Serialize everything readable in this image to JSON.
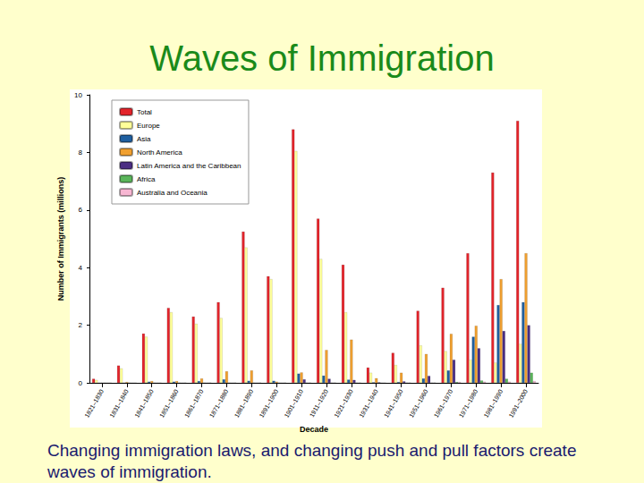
{
  "chart_data": {
    "type": "bar",
    "title": "Waves of Immigration",
    "annotations": [
      "Changing immigration laws, and changing push and pull factors create waves of immigration."
    ],
    "x_label": "Decade",
    "y_label": "Number of Immigrants (millions)",
    "categories": [
      "1821–1830",
      "1831–1840",
      "1841–1850",
      "1851–1860",
      "1861–1870",
      "1871–1880",
      "1881–1890",
      "1891–1900",
      "1901–1910",
      "1911–1920",
      "1921–1930",
      "1931–1940",
      "1941–1950",
      "1951–1960",
      "1961–1970",
      "1971–1980",
      "1981–1990",
      "1991–2000"
    ],
    "series": [
      {
        "name": "Total",
        "color": "#e3242b",
        "values": [
          0.14,
          0.6,
          1.71,
          2.6,
          2.3,
          2.8,
          5.25,
          3.7,
          8.8,
          5.7,
          4.1,
          0.53,
          1.04,
          2.5,
          3.3,
          4.5,
          7.3,
          9.1
        ]
      },
      {
        "name": "Europe",
        "color": "#ffff99",
        "values": [
          0.1,
          0.5,
          1.6,
          2.45,
          2.05,
          2.25,
          4.7,
          3.6,
          8.05,
          4.3,
          2.45,
          0.35,
          0.62,
          1.3,
          1.1,
          0.8,
          0.7,
          1.35
        ]
      },
      {
        "name": "Asia",
        "color": "#1f5fa0",
        "values": [
          0,
          0,
          0.04,
          0.04,
          0.06,
          0.12,
          0.07,
          0.07,
          0.32,
          0.25,
          0.11,
          0.02,
          0.03,
          0.15,
          0.43,
          1.6,
          2.7,
          2.8
        ]
      },
      {
        "name": "North America",
        "color": "#f0a030",
        "values": [
          0.01,
          0.03,
          0.06,
          0.06,
          0.15,
          0.4,
          0.43,
          0.04,
          0.36,
          1.14,
          1.5,
          0.16,
          0.35,
          1.0,
          1.7,
          1.98,
          3.6,
          4.5
        ]
      },
      {
        "name": "Latin America and the Caribbean",
        "color": "#4b2e83",
        "values": [
          0.01,
          0.01,
          0.01,
          0.01,
          0.01,
          0.01,
          0.01,
          0.01,
          0.12,
          0.14,
          0.1,
          0.02,
          0.05,
          0.24,
          0.8,
          1.2,
          1.8,
          2.0
        ]
      },
      {
        "name": "Africa",
        "color": "#5ab55a",
        "values": [
          0,
          0,
          0,
          0,
          0,
          0,
          0,
          0,
          0.01,
          0.01,
          0.01,
          0,
          0.01,
          0.01,
          0.03,
          0.08,
          0.14,
          0.35
        ]
      },
      {
        "name": "Australia and Oceania",
        "color": "#f7b6d2",
        "values": [
          0,
          0,
          0,
          0.01,
          0.01,
          0.01,
          0.01,
          0.01,
          0.01,
          0.01,
          0.01,
          0,
          0.01,
          0.01,
          0.03,
          0.04,
          0.04,
          0.06
        ]
      }
    ],
    "ylim": [
      0,
      10
    ],
    "yticks": [
      0,
      2,
      4,
      6,
      8,
      10
    ],
    "grid": false,
    "legend": "upper left"
  }
}
